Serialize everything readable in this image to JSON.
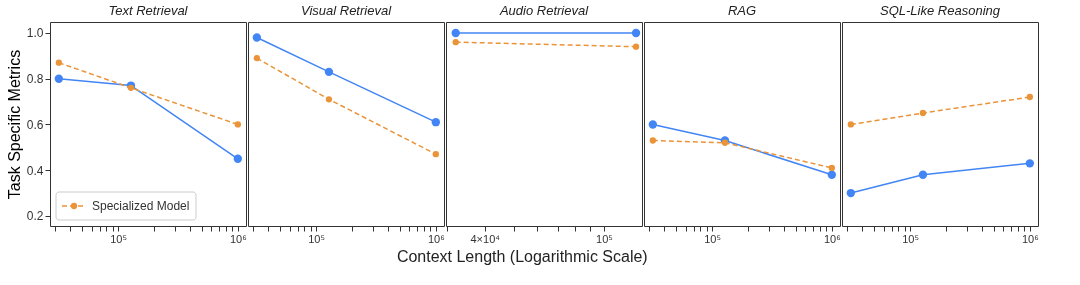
{
  "chart_data": [
    {
      "type": "line",
      "title": "Text Retrieval",
      "ylabel": "Task Specific Metrics",
      "log": "x",
      "grid": false,
      "marker": "circle",
      "legend": "bottom left",
      "xlim": [
        27000,
        1170000
      ],
      "ylim": [
        0.156,
        1.048
      ],
      "xticks": [
        {
          "value": 30000,
          "label": null
        },
        {
          "value": 40000,
          "label": null
        },
        {
          "value": 50000,
          "label": null
        },
        {
          "value": 60000,
          "label": null
        },
        {
          "value": 70000,
          "label": null
        },
        {
          "value": 80000,
          "label": null
        },
        {
          "value": 90000,
          "label": null
        },
        {
          "value": 100000,
          "label": "10⁵"
        },
        {
          "value": 200000,
          "label": null
        },
        {
          "value": 300000,
          "label": null
        },
        {
          "value": 400000,
          "label": null
        },
        {
          "value": 500000,
          "label": null
        },
        {
          "value": 600000,
          "label": null
        },
        {
          "value": 700000,
          "label": null
        },
        {
          "value": 800000,
          "label": null
        },
        {
          "value": 900000,
          "label": null
        },
        {
          "value": 1000000,
          "label": "10⁶"
        }
      ],
      "yticks": [
        0.2,
        0.4,
        0.6,
        0.8,
        {
          "value": 1.0,
          "label": "1.0"
        }
      ],
      "x": [
        32000,
        128000,
        1000000
      ],
      "series": [
        {
          "color": "#4285f4",
          "line_style": "solid",
          "values": [
            0.8,
            0.77,
            0.45
          ]
        },
        {
          "name": "Specialized Model",
          "color": "#ea9338",
          "line_style": "dashed",
          "values": [
            0.87,
            0.76,
            0.6
          ]
        }
      ]
    },
    {
      "type": "line",
      "title": "Visual Retrieval",
      "log": "x",
      "grid": false,
      "marker": "circle",
      "tick_labels": "x",
      "xlim": [
        27000,
        1170000
      ],
      "ylim": [
        0.156,
        1.048
      ],
      "xticks": [
        {
          "value": 30000,
          "label": null
        },
        {
          "value": 40000,
          "label": null
        },
        {
          "value": 50000,
          "label": null
        },
        {
          "value": 60000,
          "label": null
        },
        {
          "value": 70000,
          "label": null
        },
        {
          "value": 80000,
          "label": null
        },
        {
          "value": 90000,
          "label": null
        },
        {
          "value": 100000,
          "label": "10⁵"
        },
        {
          "value": 200000,
          "label": null
        },
        {
          "value": 300000,
          "label": null
        },
        {
          "value": 400000,
          "label": null
        },
        {
          "value": 500000,
          "label": null
        },
        {
          "value": 600000,
          "label": null
        },
        {
          "value": 700000,
          "label": null
        },
        {
          "value": 800000,
          "label": null
        },
        {
          "value": 900000,
          "label": null
        },
        {
          "value": 1000000,
          "label": "10⁶"
        }
      ],
      "x": [
        32000,
        128000,
        1000000
      ],
      "series": [
        {
          "color": "#4285f4",
          "line_style": "solid",
          "values": [
            0.98,
            0.83,
            0.61
          ]
        },
        {
          "color": "#ea9338",
          "line_style": "dashed",
          "values": [
            0.89,
            0.71,
            0.47
          ]
        }
      ]
    },
    {
      "type": "line",
      "title": "Audio Retrieval",
      "xlabel": "Context Length (Logarithmic Scale)",
      "log": "x",
      "grid": false,
      "marker": "circle",
      "tick_labels": "x",
      "xlim": [
        29700,
        134000
      ],
      "ylim": [
        0.156,
        1.048
      ],
      "xticks": [
        {
          "value": 30000,
          "label": null
        },
        {
          "value": 40000,
          "label": "4×10⁴"
        },
        {
          "value": 50000,
          "label": null
        },
        {
          "value": 60000,
          "label": null
        },
        {
          "value": 70000,
          "label": null
        },
        {
          "value": 80000,
          "label": null
        },
        {
          "value": 90000,
          "label": null
        },
        {
          "value": 100000,
          "label": "10⁵"
        }
      ],
      "x": [
        32000,
        128000
      ],
      "series": [
        {
          "color": "#4285f4",
          "line_style": "solid",
          "values": [
            1.0,
            1.0
          ]
        },
        {
          "color": "#ea9338",
          "line_style": "dashed",
          "values": [
            0.96,
            0.94
          ]
        }
      ]
    },
    {
      "type": "line",
      "title": "RAG",
      "log": "x",
      "grid": false,
      "marker": "circle",
      "tick_labels": "x",
      "xlim": [
        27000,
        1170000
      ],
      "ylim": [
        0.156,
        1.048
      ],
      "xticks": [
        {
          "value": 30000,
          "label": null
        },
        {
          "value": 40000,
          "label": null
        },
        {
          "value": 50000,
          "label": null
        },
        {
          "value": 60000,
          "label": null
        },
        {
          "value": 70000,
          "label": null
        },
        {
          "value": 80000,
          "label": null
        },
        {
          "value": 90000,
          "label": null
        },
        {
          "value": 100000,
          "label": "10⁵"
        },
        {
          "value": 200000,
          "label": null
        },
        {
          "value": 300000,
          "label": null
        },
        {
          "value": 400000,
          "label": null
        },
        {
          "value": 500000,
          "label": null
        },
        {
          "value": 600000,
          "label": null
        },
        {
          "value": 700000,
          "label": null
        },
        {
          "value": 800000,
          "label": null
        },
        {
          "value": 900000,
          "label": null
        },
        {
          "value": 1000000,
          "label": "10⁶"
        }
      ],
      "x": [
        32000,
        128000,
        1000000
      ],
      "series": [
        {
          "color": "#4285f4",
          "line_style": "solid",
          "values": [
            0.6,
            0.53,
            0.38
          ]
        },
        {
          "color": "#ea9338",
          "line_style": "dashed",
          "values": [
            0.53,
            0.52,
            0.41
          ]
        }
      ]
    },
    {
      "type": "line",
      "title": "SQL-Like Reasoning",
      "log": "x",
      "grid": false,
      "marker": "circle",
      "tick_labels": "x",
      "xlim": [
        27000,
        1170000
      ],
      "ylim": [
        0.156,
        1.048
      ],
      "xticks": [
        {
          "value": 30000,
          "label": null
        },
        {
          "value": 40000,
          "label": null
        },
        {
          "value": 50000,
          "label": null
        },
        {
          "value": 60000,
          "label": null
        },
        {
          "value": 70000,
          "label": null
        },
        {
          "value": 80000,
          "label": null
        },
        {
          "value": 90000,
          "label": null
        },
        {
          "value": 100000,
          "label": "10⁵"
        },
        {
          "value": 200000,
          "label": null
        },
        {
          "value": 300000,
          "label": null
        },
        {
          "value": 400000,
          "label": null
        },
        {
          "value": 500000,
          "label": null
        },
        {
          "value": 600000,
          "label": null
        },
        {
          "value": 700000,
          "label": null
        },
        {
          "value": 800000,
          "label": null
        },
        {
          "value": 900000,
          "label": null
        },
        {
          "value": 1000000,
          "label": "10⁶"
        }
      ],
      "x": [
        32000,
        128000,
        1000000
      ],
      "series": [
        {
          "color": "#4285f4",
          "line_style": "solid",
          "values": [
            0.3,
            0.38,
            0.43
          ]
        },
        {
          "color": "#ea9338",
          "line_style": "dashed",
          "values": [
            0.6,
            0.65,
            0.72
          ]
        }
      ]
    }
  ]
}
